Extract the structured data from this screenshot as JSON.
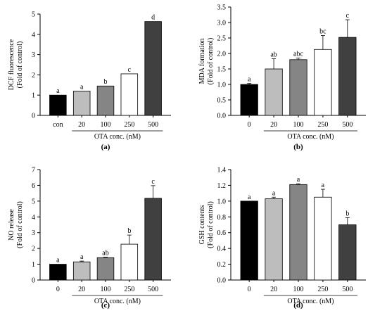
{
  "chart_data": [
    {
      "type": "bar",
      "panel_label": "(a)",
      "ylabel_lines": [
        "DCF fluorescence",
        "(Fold of control)"
      ],
      "xlabel": "OTA conc. (nM)",
      "categories": [
        "con",
        "20",
        "100",
        "250",
        "500"
      ],
      "values": [
        1.0,
        1.2,
        1.45,
        2.05,
        4.63
      ],
      "errors": [
        0,
        0,
        0,
        0,
        0
      ],
      "letters": [
        "a",
        "a",
        "b",
        "c",
        "d"
      ],
      "ylim": [
        0,
        5
      ],
      "yticks": [
        "0",
        "1",
        "2",
        "3",
        "4",
        "5"
      ],
      "bar_colors": [
        "#000000",
        "#bdbdbd",
        "#858585",
        "#ffffff",
        "#404040"
      ]
    },
    {
      "type": "bar",
      "panel_label": "(b)",
      "ylabel_lines": [
        "MDA formation",
        "(Fold of control)"
      ],
      "xlabel": "OTA conc. (nM)",
      "categories": [
        "0",
        "20",
        "100",
        "250",
        "500"
      ],
      "values": [
        1.0,
        1.5,
        1.8,
        2.13,
        2.52
      ],
      "errors": [
        0.03,
        0.33,
        0.05,
        0.45,
        0.57
      ],
      "letters": [
        "a",
        "ab",
        "abc",
        "bc",
        "c"
      ],
      "ylim": [
        0,
        3.5
      ],
      "yticks": [
        "0.0",
        "0.5",
        "1.0",
        "1.5",
        "2.0",
        "2.5",
        "3.0",
        "3.5"
      ],
      "bar_colors": [
        "#000000",
        "#bdbdbd",
        "#858585",
        "#ffffff",
        "#404040"
      ]
    },
    {
      "type": "bar",
      "panel_label": "(c)",
      "ylabel_lines": [
        "NO release",
        "(Fold of control)"
      ],
      "xlabel": "OTA conc. (nM)",
      "categories": [
        "0",
        "20",
        "100",
        "250",
        "500"
      ],
      "values": [
        1.0,
        1.15,
        1.42,
        2.27,
        5.18
      ],
      "errors": [
        0,
        0.05,
        0.03,
        0.58,
        0.8
      ],
      "letters": [
        "a",
        "a",
        "ab",
        "b",
        "c"
      ],
      "ylim": [
        0,
        7
      ],
      "yticks": [
        "0",
        "1",
        "2",
        "3",
        "4",
        "5",
        "6",
        "7"
      ],
      "bar_colors": [
        "#000000",
        "#bdbdbd",
        "#858585",
        "#ffffff",
        "#404040"
      ]
    },
    {
      "type": "bar",
      "panel_label": "(d)",
      "ylabel_lines": [
        "GSH contents",
        "(Fold of control)"
      ],
      "xlabel": "OTA conc. (nM)",
      "categories": [
        "0",
        "20",
        "100",
        "250",
        "500"
      ],
      "values": [
        1.0,
        1.03,
        1.21,
        1.05,
        0.7
      ],
      "errors": [
        0,
        0.02,
        0.01,
        0.1,
        0.09
      ],
      "letters": [
        "a",
        "a",
        "a",
        "a",
        "b"
      ],
      "ylim": [
        0,
        1.4
      ],
      "yticks": [
        "0.0",
        "0.2",
        "0.4",
        "0.6",
        "0.8",
        "1.0",
        "1.2",
        "1.4"
      ],
      "bar_colors": [
        "#000000",
        "#bdbdbd",
        "#858585",
        "#ffffff",
        "#404040"
      ]
    }
  ]
}
